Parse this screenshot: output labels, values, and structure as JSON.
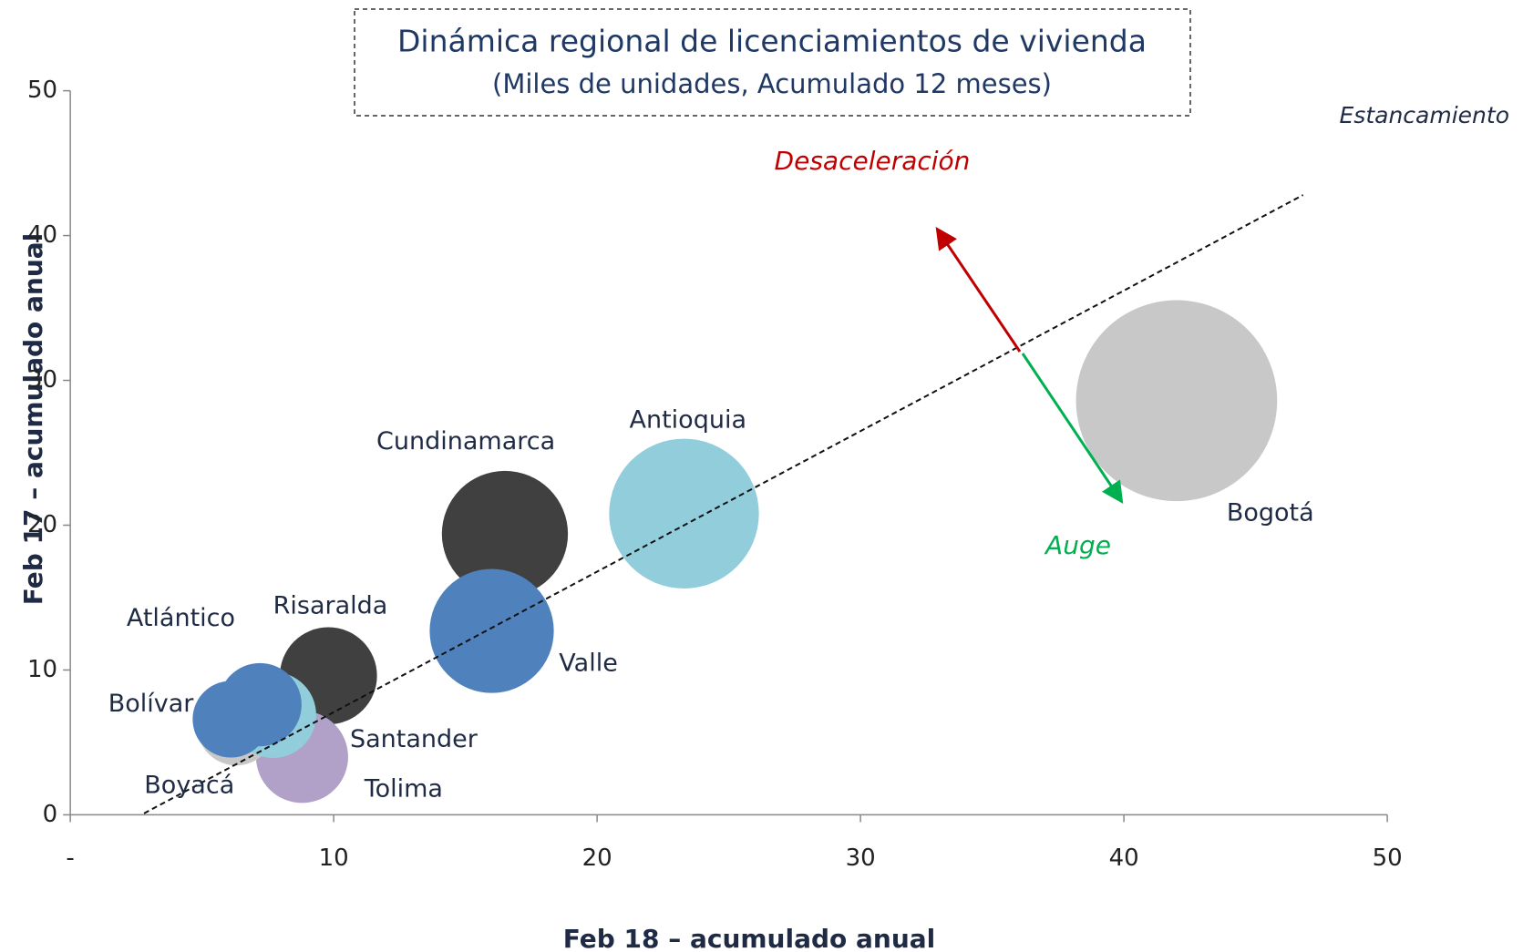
{
  "chart_data": {
    "type": "bubble",
    "title": "Dinámica regional de licenciamientos de vivienda",
    "subtitle": "(Miles de unidades, Acumulado 12 meses)",
    "x_label": "Feb 18 – acumulado anual",
    "y_label": "Feb 17 – acumulado anual",
    "annotations": [
      "Desaceleración",
      "Auge",
      "Estancamiento"
    ],
    "categories": [
      "Bogotá",
      "Antioquia",
      "Cundinamarca",
      "Valle",
      "Risaralda",
      "Tolima",
      "Boyacá",
      "Santander",
      "Atlántico",
      "Bolívar"
    ],
    "x": [
      42.0,
      23.3,
      16.5,
      16.0,
      9.8,
      8.8,
      6.3,
      7.7,
      7.2,
      6.1
    ],
    "values": [
      28.6,
      20.8,
      19.4,
      12.7,
      9.6,
      4.0,
      6.1,
      6.9,
      7.6,
      6.6
    ],
    "sizes": [
      42.0,
      23.3,
      16.5,
      16.0,
      9.8,
      8.8,
      6.3,
      7.7,
      7.2,
      6.1
    ],
    "colors": [
      "#c8c8c8",
      "#92cddc",
      "#404040",
      "#4f81bd",
      "#404040",
      "#b1a0c7",
      "#c8c8c8",
      "#92cddc",
      "#4f81bd",
      "#4f81bd"
    ],
    "trend_line": {
      "x": [
        2.8,
        46.8
      ],
      "y": [
        0.1,
        42.8
      ]
    },
    "xlim": [
      0,
      50
    ],
    "ylim": [
      0,
      50
    ],
    "xticks": [
      {
        "value": 0,
        "label": "-"
      },
      10,
      20,
      30,
      40,
      50
    ],
    "yticks": [
      0,
      10,
      20,
      30,
      40,
      50
    ]
  }
}
